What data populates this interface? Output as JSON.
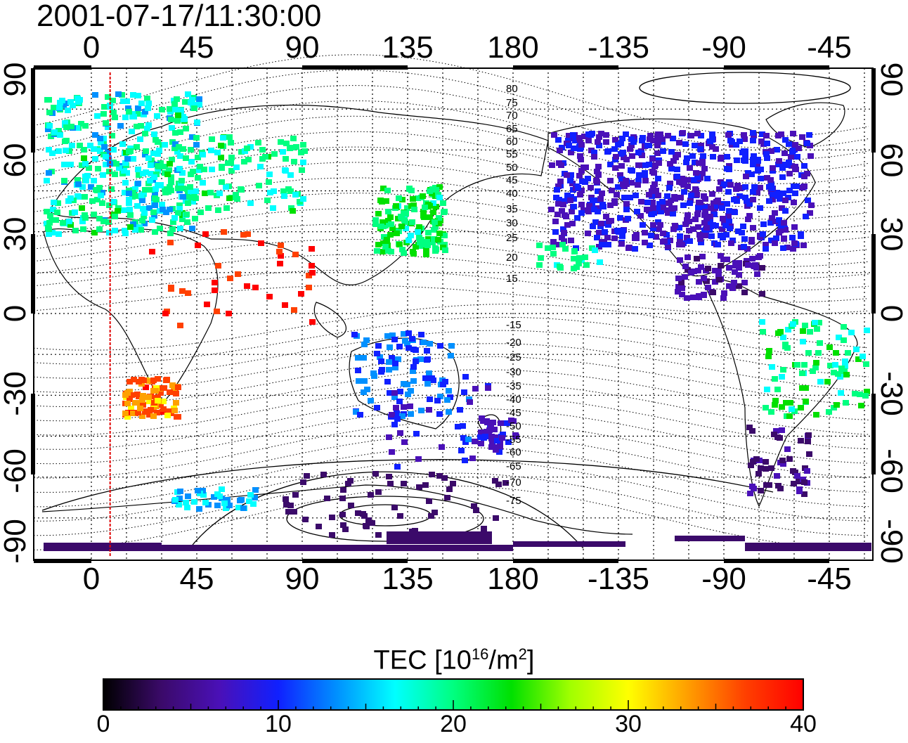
{
  "timestamp": "2001-07-17/11:30:00",
  "map": {
    "top_xticks": [
      "0",
      "45",
      "90",
      "135",
      "180",
      "-135",
      "-90",
      "-45"
    ],
    "bottom_xticks": [
      "0",
      "45",
      "90",
      "135",
      "180",
      "-135",
      "-90",
      "-45"
    ],
    "left_yticks": [
      "90",
      "60",
      "30",
      "0",
      "-30",
      "-60",
      "-90"
    ],
    "right_yticks": [
      "90",
      "60",
      "30",
      "0",
      "-30",
      "-60",
      "-90"
    ],
    "contour_labels_north": [
      "80",
      "75",
      "70",
      "65",
      "60",
      "55",
      "50",
      "45",
      "40",
      "35",
      "30",
      "25",
      "20",
      "15"
    ],
    "contour_labels_south": [
      "-15",
      "-20",
      "-25",
      "-30",
      "-35",
      "-40",
      "-45",
      "-50",
      "-55",
      "-60",
      "-65",
      "-70",
      "-75"
    ],
    "marker_line_longitude": 8,
    "colors": {
      "marker_line": "#e00000"
    }
  },
  "colorbar": {
    "label_main": "TEC  [10",
    "label_sup1": "16",
    "label_mid": "/m",
    "label_sup2": "2",
    "label_end": "]",
    "ticks": [
      "0",
      "10",
      "20",
      "30",
      "40"
    ],
    "range": [
      0,
      40
    ],
    "colors": [
      "#000000",
      "#3b0a6a",
      "#4a10b8",
      "#1020ff",
      "#0090ff",
      "#00ffff",
      "#00ff80",
      "#00e000",
      "#a0ff00",
      "#ffff00",
      "#ffa000",
      "#ff4000",
      "#ff0000"
    ]
  }
}
